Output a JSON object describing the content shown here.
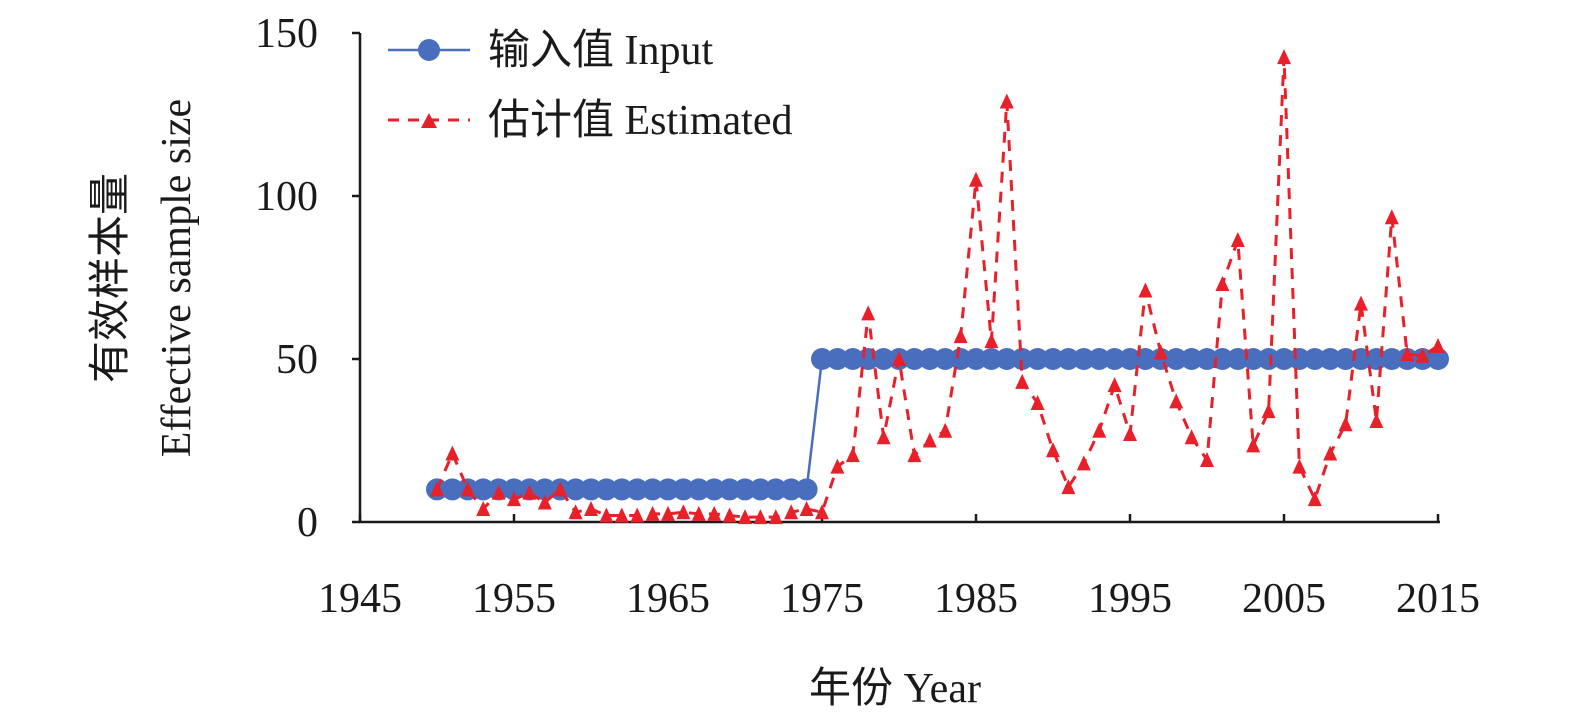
{
  "chart_data": {
    "type": "line",
    "xlabel": "年份 Year",
    "ylabel": [
      "有效样本量",
      "Effective sample size"
    ],
    "xlim": [
      1945,
      2015
    ],
    "ylim": [
      0,
      150
    ],
    "xticks": [
      1945,
      1955,
      1965,
      1975,
      1985,
      1995,
      2005,
      2015
    ],
    "yticks": [
      0,
      50,
      100,
      150
    ],
    "grid": false,
    "legend": "top-left",
    "x": [
      1950,
      1951,
      1952,
      1953,
      1954,
      1955,
      1956,
      1957,
      1958,
      1959,
      1960,
      1961,
      1962,
      1963,
      1964,
      1965,
      1966,
      1967,
      1968,
      1969,
      1970,
      1971,
      1972,
      1973,
      1974,
      1975,
      1976,
      1977,
      1978,
      1979,
      1980,
      1981,
      1982,
      1983,
      1984,
      1985,
      1986,
      1987,
      1988,
      1989,
      1990,
      1991,
      1992,
      1993,
      1994,
      1995,
      1996,
      1997,
      1998,
      1999,
      2000,
      2001,
      2002,
      2003,
      2004,
      2005,
      2006,
      2007,
      2008,
      2009,
      2010,
      2011,
      2012,
      2013,
      2014,
      2015
    ],
    "series": [
      {
        "name": "输入值 Input",
        "color": "#4a6ebe",
        "style": "solid-circle",
        "values": [
          10,
          10,
          10,
          10,
          10,
          10,
          10,
          10,
          10,
          10,
          10,
          10,
          10,
          10,
          10,
          10,
          10,
          10,
          10,
          10,
          10,
          10,
          10,
          10,
          10,
          50,
          50,
          50,
          50,
          50,
          50,
          50,
          50,
          50,
          50,
          50,
          50,
          50,
          50,
          50,
          50,
          50,
          50,
          50,
          50,
          50,
          50,
          50,
          50,
          50,
          50,
          50,
          50,
          50,
          50,
          50,
          50,
          50,
          50,
          50,
          50,
          50,
          50,
          50,
          50,
          50
        ]
      },
      {
        "name": "估计值 Estimated",
        "color": "#e8202a",
        "style": "dashed-triangle",
        "values": [
          10,
          21,
          10,
          4,
          9,
          7,
          9,
          6,
          10,
          3,
          4,
          2,
          2,
          2,
          2.5,
          2.5,
          3,
          2.5,
          2.5,
          2,
          1.5,
          1.5,
          1.5,
          3,
          4,
          3,
          17,
          20.5,
          64,
          26,
          50,
          20.5,
          25,
          28,
          57,
          105,
          55.5,
          129,
          43,
          36.5,
          22,
          10.7,
          18,
          28,
          42,
          27,
          71,
          52,
          37,
          26,
          19,
          73,
          86.5,
          23.5,
          34,
          142.6,
          17,
          7,
          21,
          30,
          67,
          31,
          93.5,
          51.5,
          51,
          54
        ]
      }
    ]
  }
}
